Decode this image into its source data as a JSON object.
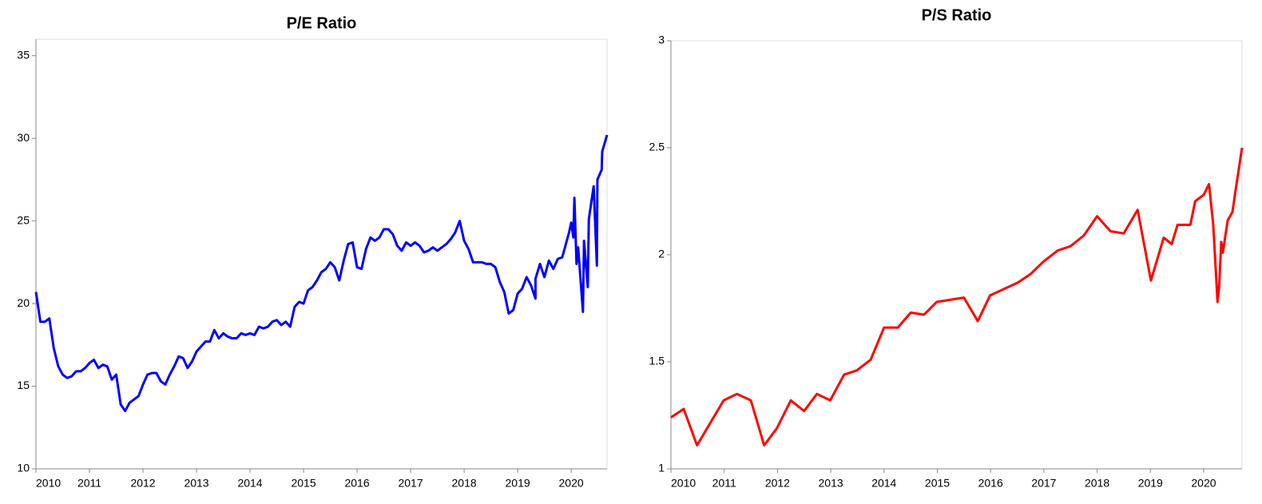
{
  "chart_data": [
    {
      "type": "line",
      "title": "P/E Ratio",
      "color": "#0000ff",
      "x": [
        2010,
        2010.083,
        2010.167,
        2010.25,
        2010.333,
        2010.417,
        2010.5,
        2010.583,
        2010.667,
        2010.75,
        2010.833,
        2010.917,
        2011,
        2011.083,
        2011.167,
        2011.25,
        2011.333,
        2011.417,
        2011.5,
        2011.583,
        2011.667,
        2011.75,
        2011.833,
        2011.917,
        2012,
        2012.083,
        2012.167,
        2012.25,
        2012.333,
        2012.417,
        2012.5,
        2012.583,
        2012.667,
        2012.75,
        2012.833,
        2012.917,
        2013,
        2013.083,
        2013.167,
        2013.25,
        2013.333,
        2013.417,
        2013.5,
        2013.583,
        2013.667,
        2013.75,
        2013.833,
        2013.917,
        2014,
        2014.083,
        2014.167,
        2014.25,
        2014.333,
        2014.417,
        2014.5,
        2014.583,
        2014.667,
        2014.75,
        2014.833,
        2014.917,
        2015,
        2015.083,
        2015.167,
        2015.25,
        2015.333,
        2015.417,
        2015.5,
        2015.583,
        2015.667,
        2015.75,
        2015.833,
        2015.917,
        2016,
        2016.083,
        2016.167,
        2016.25,
        2016.333,
        2016.417,
        2016.5,
        2016.583,
        2016.667,
        2016.75,
        2016.833,
        2016.917,
        2017,
        2017.083,
        2017.167,
        2017.25,
        2017.333,
        2017.417,
        2017.5,
        2017.583,
        2017.667,
        2017.75,
        2017.833,
        2017.917,
        2018,
        2018.083,
        2018.167,
        2018.25,
        2018.333,
        2018.417,
        2018.5,
        2018.583,
        2018.667,
        2018.75,
        2018.833,
        2018.917,
        2019,
        2019.083,
        2019.167,
        2019.25,
        2019.333,
        2019.333,
        2019.417,
        2019.5,
        2019.583,
        2019.667,
        2019.75,
        2019.833,
        2019.96,
        2020,
        2020.04,
        2020.06,
        2020.1,
        2020.13,
        2020.22,
        2020.24,
        2020.31,
        2020.33,
        2020.42,
        2020.48,
        2020.49,
        2020.57,
        2020.58,
        2020.67
      ],
      "values": [
        20.7,
        18.9,
        18.9,
        19.1,
        17.3,
        16.2,
        15.7,
        15.5,
        15.6,
        15.9,
        15.9,
        16.1,
        16.4,
        16.6,
        16.1,
        16.3,
        16.2,
        15.4,
        15.7,
        13.9,
        13.5,
        14.0,
        14.2,
        14.4,
        15.1,
        15.7,
        15.8,
        15.8,
        15.3,
        15.1,
        15.7,
        16.2,
        16.8,
        16.7,
        16.1,
        16.5,
        17.1,
        17.4,
        17.7,
        17.7,
        18.4,
        17.9,
        18.2,
        18.0,
        17.9,
        17.9,
        18.2,
        18.1,
        18.2,
        18.1,
        18.6,
        18.5,
        18.6,
        18.9,
        19.0,
        18.7,
        18.9,
        18.6,
        19.8,
        20.1,
        20.0,
        20.8,
        21.0,
        21.4,
        21.9,
        22.1,
        22.5,
        22.2,
        21.4,
        22.6,
        23.6,
        23.7,
        22.2,
        22.1,
        23.3,
        24.0,
        23.8,
        24.0,
        24.5,
        24.5,
        24.2,
        23.5,
        23.2,
        23.7,
        23.5,
        23.7,
        23.5,
        23.1,
        23.2,
        23.4,
        23.2,
        23.4,
        23.6,
        23.9,
        24.3,
        25.0,
        23.8,
        23.3,
        22.5,
        22.5,
        22.5,
        22.4,
        22.4,
        22.2,
        21.3,
        20.7,
        19.4,
        19.6,
        20.6,
        20.9,
        21.6,
        21.1,
        20.3,
        21.5,
        22.4,
        21.6,
        22.6,
        22.1,
        22.7,
        22.8,
        24.3,
        24.9,
        24.0,
        26.4,
        22.4,
        23.4,
        19.5,
        23.8,
        21.0,
        25.1,
        27.1,
        22.3,
        27.5,
        28.1,
        29.2,
        30.2
      ],
      "xlim": [
        2010,
        2020.67
      ],
      "xticks": [
        2010,
        2011,
        2012,
        2013,
        2014,
        2015,
        2016,
        2017,
        2018,
        2019,
        2020
      ],
      "ylim": [
        10,
        36
      ],
      "yticks": [
        10,
        15,
        20,
        25,
        30,
        35
      ]
    },
    {
      "type": "line",
      "title": "P/S Ratio",
      "color": "#ff0000",
      "x": [
        2010,
        2010.24,
        2010.49,
        2010.99,
        2011.24,
        2011.5,
        2011.75,
        2011.99,
        2012.25,
        2012.5,
        2012.74,
        2012.99,
        2013.25,
        2013.49,
        2013.75,
        2014,
        2014.26,
        2014.5,
        2014.75,
        2014.99,
        2015.25,
        2015.5,
        2015.76,
        2015.99,
        2016.25,
        2016.51,
        2016.75,
        2017,
        2017.26,
        2017.5,
        2017.75,
        2018,
        2018.25,
        2018.5,
        2018.76,
        2019.01,
        2019.25,
        2019.4,
        2019.51,
        2019.75,
        2019.84,
        2020,
        2020.1,
        2020.18,
        2020.26,
        2020.29,
        2020.33,
        2020.36,
        2020.45,
        2020.54,
        2020.61,
        2020.72
      ],
      "values": [
        1.24,
        1.28,
        1.11,
        1.32,
        1.35,
        1.32,
        1.11,
        1.19,
        1.32,
        1.27,
        1.35,
        1.32,
        1.44,
        1.46,
        1.51,
        1.66,
        1.66,
        1.73,
        1.72,
        1.78,
        1.79,
        1.8,
        1.69,
        1.81,
        1.84,
        1.87,
        1.91,
        1.97,
        2.02,
        2.04,
        2.09,
        2.18,
        2.11,
        2.1,
        2.21,
        1.88,
        2.08,
        2.05,
        2.14,
        2.14,
        2.25,
        2.28,
        2.33,
        2.14,
        1.78,
        1.85,
        2.06,
        2.01,
        2.16,
        2.2,
        2.32,
        2.5
      ],
      "xlim": [
        2010,
        2020.72
      ],
      "xticks": [
        2010,
        2011,
        2012,
        2013,
        2014,
        2015,
        2016,
        2017,
        2018,
        2019,
        2020
      ],
      "ylim": [
        1,
        3
      ],
      "yticks": [
        1,
        1.5,
        2,
        2.5,
        3
      ]
    }
  ]
}
